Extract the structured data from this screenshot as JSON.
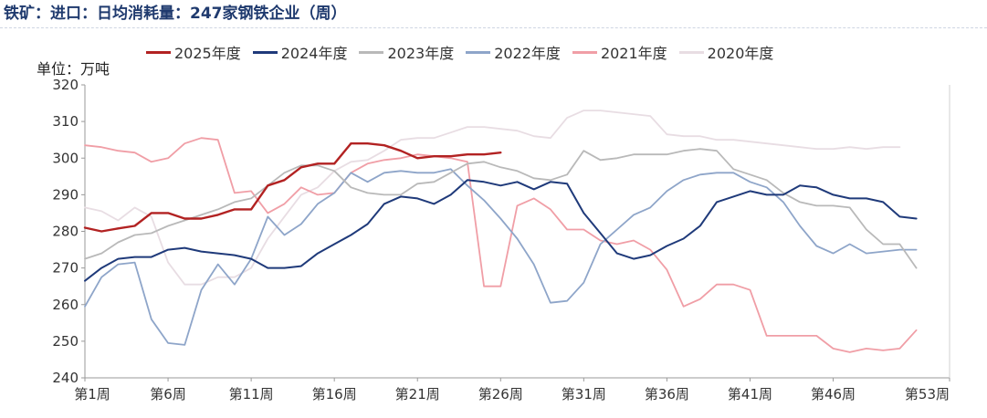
{
  "chart_data": {
    "type": "line",
    "title": "铁矿：进口：日均消耗量：247家钢铁企业（周）",
    "unit_label": "单位：万吨",
    "ylim": [
      240,
      320
    ],
    "y_ticks": [
      "240",
      "250",
      "260",
      "270",
      "280",
      "290",
      "300",
      "310",
      "320"
    ],
    "x_ticks": [
      "第1周",
      "第6周",
      "第11周",
      "第16周",
      "第21周",
      "第26周",
      "第31周",
      "第36周",
      "第41周",
      "第46周",
      "第53周"
    ],
    "x_tick_positions": [
      1,
      6,
      11,
      16,
      21,
      26,
      31,
      36,
      41,
      46,
      53
    ],
    "x_range": [
      1,
      53
    ],
    "grid": false,
    "legend_position": "top",
    "series": [
      {
        "name": "2025年度",
        "color": "#b22222",
        "width": 2.4,
        "values": [
          281,
          280,
          280.8,
          281.5,
          285,
          285,
          283.5,
          283.5,
          284.5,
          286,
          286,
          292.5,
          294,
          297.5,
          298.5,
          298.5,
          304,
          304,
          303.5,
          302,
          300,
          300.5,
          300.5,
          301,
          301,
          301.5
        ]
      },
      {
        "name": "2024年度",
        "color": "#1f3a7a",
        "width": 2.0,
        "values": [
          266.5,
          270,
          272.5,
          273,
          273,
          275,
          275.5,
          274.5,
          274,
          273.5,
          272.5,
          270,
          270,
          270.5,
          274,
          276.5,
          279,
          282,
          287.5,
          289.5,
          289,
          287.5,
          290,
          294,
          293.5,
          292.5,
          293.5,
          291.5,
          293.5,
          293,
          285,
          279.5,
          274,
          272.5,
          273.5,
          276,
          278,
          281.5,
          288,
          289.5,
          291,
          290,
          290,
          292.5,
          292,
          290,
          289,
          289,
          288,
          284,
          283.5
        ]
      },
      {
        "name": "2023年度",
        "color": "#b9b9b9",
        "width": 1.8,
        "values": [
          272.5,
          274,
          277,
          279,
          279.5,
          281.5,
          283,
          284.5,
          286,
          288,
          289,
          292.5,
          296,
          298,
          298,
          296.5,
          292,
          290.5,
          290,
          290,
          293,
          293.5,
          296,
          298.5,
          299,
          297.5,
          296.5,
          294.5,
          294,
          295.5,
          302,
          299.5,
          300,
          301,
          301,
          301,
          302,
          302.5,
          302,
          297,
          295.5,
          294,
          290.5,
          288,
          287,
          287,
          286.5,
          280.5,
          276.5,
          276.5,
          270
        ]
      },
      {
        "name": "2022年度",
        "color": "#8ea5c9",
        "width": 1.8,
        "values": [
          259.5,
          267.5,
          271,
          271.5,
          256,
          249.5,
          249,
          264,
          271,
          265.5,
          272.5,
          284,
          279,
          282,
          287.5,
          290.5,
          296,
          293.5,
          296,
          296.5,
          296,
          296,
          297,
          292.5,
          288.5,
          283.5,
          278,
          271,
          260.5,
          261,
          266,
          276.5,
          280.5,
          284.5,
          286.5,
          291,
          294,
          295.5,
          296,
          296,
          293.5,
          292,
          288,
          281.5,
          276,
          274,
          276.5,
          274,
          274.5,
          275,
          275
        ]
      },
      {
        "name": "2021年度",
        "color": "#f09ea6",
        "width": 1.8,
        "values": [
          303.5,
          303,
          302,
          301.5,
          299,
          300,
          304,
          305.5,
          305,
          290.5,
          291,
          285,
          287.5,
          292,
          290,
          290.5,
          296,
          298.5,
          299.5,
          300,
          301,
          300.5,
          300,
          299,
          265,
          265,
          287,
          289,
          286,
          280.5,
          280.5,
          277.5,
          276.5,
          277.5,
          275,
          269.5,
          259.5,
          261.5,
          265.5,
          265.5,
          264,
          251.5,
          251.5,
          251.5,
          251.5,
          248,
          247,
          248,
          247.5,
          248,
          253
        ]
      },
      {
        "name": "2020年度",
        "color": "#e8dde3",
        "width": 1.8,
        "values": [
          286.5,
          285.5,
          283,
          286.5,
          284,
          271.5,
          265.5,
          265.5,
          267.5,
          267.5,
          270,
          278,
          284,
          290,
          292,
          296.5,
          299,
          299.5,
          302,
          305,
          305.5,
          305.5,
          307,
          308.5,
          308.5,
          308,
          307.5,
          306,
          305.5,
          311,
          313,
          313,
          312.5,
          312,
          311.5,
          306.5,
          306,
          306,
          305,
          305,
          304.5,
          304,
          303.5,
          303,
          302.5,
          302.5,
          303,
          302.5,
          303,
          303
        ]
      }
    ]
  }
}
